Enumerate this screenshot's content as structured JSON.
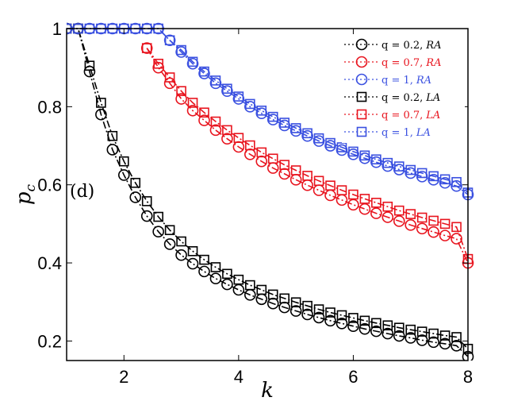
{
  "chart_data": {
    "type": "line",
    "xlabel": "k",
    "ylabel": "p",
    "ylabel_sub": "c",
    "xlim": [
      1,
      8
    ],
    "ylim": [
      0.15,
      1.0
    ],
    "xticks": [
      2,
      4,
      6,
      8
    ],
    "yticks": [
      0.2,
      0.4,
      0.6,
      0.8,
      1.0
    ],
    "ytick_labels": [
      "0.2",
      "0.4",
      "0.6",
      "0.8",
      "1"
    ],
    "panel_label": "(d)",
    "grid": false,
    "legend_position": "top-right",
    "series": [
      {
        "name": "q = 0.2, RA",
        "q_label": "q = 0.2,",
        "model": "RA",
        "color": "#000000",
        "marker": "circle",
        "x": [
          1.0,
          1.2,
          1.4,
          1.6,
          1.8,
          2.0,
          2.2,
          2.4,
          2.6,
          2.8,
          3.0,
          3.2,
          3.4,
          3.6,
          3.8,
          4.0,
          4.2,
          4.4,
          4.6,
          4.8,
          5.0,
          5.2,
          5.4,
          5.6,
          5.8,
          6.0,
          6.2,
          6.4,
          6.6,
          6.8,
          7.0,
          7.2,
          7.4,
          7.6,
          7.8,
          8.0
        ],
        "y": [
          1.0,
          1.0,
          0.89,
          0.78,
          0.69,
          0.625,
          0.568,
          0.52,
          0.48,
          0.448,
          0.42,
          0.398,
          0.378,
          0.36,
          0.345,
          0.331,
          0.318,
          0.307,
          0.296,
          0.286,
          0.277,
          0.268,
          0.26,
          0.252,
          0.245,
          0.238,
          0.231,
          0.225,
          0.219,
          0.213,
          0.208,
          0.202,
          0.197,
          0.193,
          0.188,
          0.16
        ]
      },
      {
        "name": "q = 0.7, RA",
        "q_label": "q = 0.7,",
        "model": "RA",
        "color": "#e8141e",
        "marker": "circle",
        "x": [
          2.4,
          2.6,
          2.8,
          3.0,
          3.2,
          3.4,
          3.6,
          3.8,
          4.0,
          4.2,
          4.4,
          4.6,
          4.8,
          5.0,
          5.2,
          5.4,
          5.6,
          5.8,
          6.0,
          6.2,
          6.4,
          6.6,
          6.8,
          7.0,
          7.2,
          7.4,
          7.6,
          7.8,
          8.0
        ],
        "y": [
          0.95,
          0.9,
          0.86,
          0.82,
          0.79,
          0.765,
          0.74,
          0.718,
          0.697,
          0.678,
          0.66,
          0.643,
          0.628,
          0.613,
          0.599,
          0.586,
          0.573,
          0.561,
          0.549,
          0.538,
          0.527,
          0.517,
          0.507,
          0.497,
          0.488,
          0.479,
          0.47,
          0.462,
          0.4
        ]
      },
      {
        "name": "q = 1, RA",
        "q_label": "q = 1,",
        "model": "RA",
        "color": "#3a50e0",
        "marker": "circle",
        "x": [
          1.0,
          1.2,
          1.4,
          1.6,
          1.8,
          2.0,
          2.2,
          2.4,
          2.6,
          2.8,
          3.0,
          3.2,
          3.4,
          3.6,
          3.8,
          4.0,
          4.2,
          4.4,
          4.6,
          4.8,
          5.0,
          5.2,
          5.4,
          5.6,
          5.8,
          6.0,
          6.2,
          6.4,
          6.6,
          6.8,
          7.0,
          7.2,
          7.4,
          7.6,
          7.8,
          8.0
        ],
        "y": [
          1.0,
          1.0,
          1.0,
          1.0,
          1.0,
          1.0,
          1.0,
          1.0,
          1.0,
          0.97,
          0.94,
          0.91,
          0.885,
          0.86,
          0.84,
          0.82,
          0.8,
          0.783,
          0.767,
          0.752,
          0.738,
          0.725,
          0.712,
          0.7,
          0.689,
          0.678,
          0.668,
          0.658,
          0.648,
          0.639,
          0.63,
          0.621,
          0.613,
          0.605,
          0.597,
          0.575
        ]
      },
      {
        "name": "q = 0.2, LA",
        "q_label": "q = 0.2,",
        "model": "LA",
        "color": "#000000",
        "marker": "square",
        "x": [
          1.0,
          1.2,
          1.4,
          1.6,
          1.8,
          2.0,
          2.2,
          2.4,
          2.6,
          2.8,
          3.0,
          3.2,
          3.4,
          3.6,
          3.8,
          4.0,
          4.2,
          4.4,
          4.6,
          4.8,
          5.0,
          5.2,
          5.4,
          5.6,
          5.8,
          6.0,
          6.2,
          6.4,
          6.6,
          6.8,
          7.0,
          7.2,
          7.4,
          7.6,
          7.8,
          8.0
        ],
        "y": [
          1.0,
          1.0,
          0.905,
          0.81,
          0.725,
          0.66,
          0.605,
          0.558,
          0.518,
          0.484,
          0.455,
          0.43,
          0.408,
          0.389,
          0.372,
          0.357,
          0.343,
          0.331,
          0.319,
          0.309,
          0.299,
          0.29,
          0.281,
          0.273,
          0.266,
          0.259,
          0.252,
          0.246,
          0.24,
          0.234,
          0.229,
          0.224,
          0.219,
          0.214,
          0.21,
          0.18
        ]
      },
      {
        "name": "q = 0.7, LA",
        "q_label": "q = 0.7,",
        "model": "LA",
        "color": "#e8141e",
        "marker": "square",
        "x": [
          2.4,
          2.6,
          2.8,
          3.0,
          3.2,
          3.4,
          3.6,
          3.8,
          4.0,
          4.2,
          4.4,
          4.6,
          4.8,
          5.0,
          5.2,
          5.4,
          5.6,
          5.8,
          6.0,
          6.2,
          6.4,
          6.6,
          6.8,
          7.0,
          7.2,
          7.4,
          7.6,
          7.8,
          8.0
        ],
        "y": [
          0.95,
          0.91,
          0.875,
          0.84,
          0.81,
          0.785,
          0.762,
          0.74,
          0.72,
          0.701,
          0.683,
          0.667,
          0.651,
          0.637,
          0.623,
          0.61,
          0.598,
          0.586,
          0.575,
          0.564,
          0.554,
          0.544,
          0.534,
          0.525,
          0.516,
          0.508,
          0.5,
          0.492,
          0.41
        ]
      },
      {
        "name": "q = 1, LA",
        "q_label": "q = 1,",
        "model": "LA",
        "color": "#3a50e0",
        "marker": "square",
        "x": [
          1.0,
          1.2,
          1.4,
          1.6,
          1.8,
          2.0,
          2.2,
          2.4,
          2.6,
          2.8,
          3.0,
          3.2,
          3.4,
          3.6,
          3.8,
          4.0,
          4.2,
          4.4,
          4.6,
          4.8,
          5.0,
          5.2,
          5.4,
          5.6,
          5.8,
          6.0,
          6.2,
          6.4,
          6.6,
          6.8,
          7.0,
          7.2,
          7.4,
          7.6,
          7.8,
          8.0
        ],
        "y": [
          1.0,
          1.0,
          1.0,
          1.0,
          1.0,
          1.0,
          1.0,
          1.0,
          1.0,
          0.97,
          0.945,
          0.915,
          0.89,
          0.867,
          0.846,
          0.826,
          0.807,
          0.79,
          0.774,
          0.759,
          0.745,
          0.732,
          0.719,
          0.707,
          0.696,
          0.685,
          0.675,
          0.665,
          0.656,
          0.647,
          0.638,
          0.63,
          0.622,
          0.614,
          0.607,
          0.58
        ]
      }
    ]
  }
}
